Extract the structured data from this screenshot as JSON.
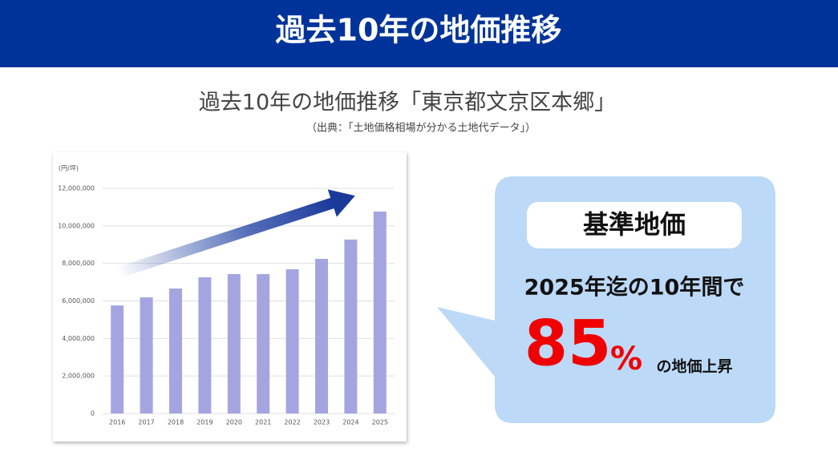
{
  "header": {
    "title": "過去10年の地価推移"
  },
  "chart_data": {
    "type": "bar",
    "title": "過去10年の地価推移「東京都文京区本郷」",
    "subtitle": "（出典：「土地価格相場が分かる土地代データ」）",
    "y_unit": "(円/坪)",
    "categories": [
      "2016",
      "2017",
      "2018",
      "2019",
      "2020",
      "2021",
      "2022",
      "2023",
      "2024",
      "2025"
    ],
    "values": [
      5760000,
      6190000,
      6660000,
      7260000,
      7430000,
      7430000,
      7690000,
      8240000,
      9270000,
      10760000
    ],
    "color": "#a4a5e0",
    "ylim": [
      0,
      12000000
    ],
    "yticks": [
      0,
      {
        "value": 2000000,
        "label": "2,000,000"
      },
      {
        "value": 4000000,
        "label": "4,000,000"
      },
      {
        "value": 6000000,
        "label": "6,000,000"
      },
      {
        "value": 8000000,
        "label": "8,000,000"
      },
      {
        "value": 10000000,
        "label": "10,000,000"
      },
      {
        "value": 12000000,
        "label": "12,000,000"
      }
    ],
    "grid": true
  },
  "callout": {
    "heading": "基準地価",
    "line1": "2025年迄の10年間で",
    "rise": 85,
    "unit": "%",
    "suffix": "の地価上昇"
  }
}
